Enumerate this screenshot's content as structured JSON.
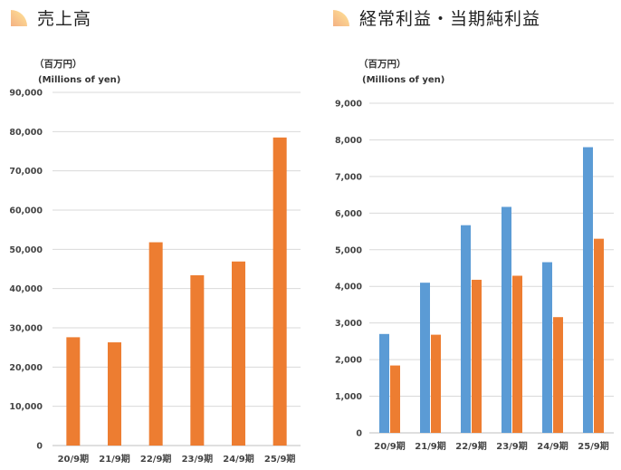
{
  "colors": {
    "orange": "#ED7D31",
    "blue": "#5B9BD5",
    "grid": "#D9D9D9",
    "axis": "#BFBFBF"
  },
  "icons": {
    "heading": "quarter-circle-gradient-icon"
  },
  "chart_data": [
    {
      "type": "bar",
      "title": "売上高",
      "unit_jp": "（百万円）",
      "unit_en": "(Millions of yen)",
      "categories": [
        "20/9期",
        "21/9期",
        "22/9期",
        "23/9期",
        "24/9期",
        "25/9期"
      ],
      "series": [
        {
          "values": [
            27600,
            26300,
            51800,
            43400,
            46900,
            78500
          ],
          "color": "#ED7D31"
        }
      ],
      "ylim": [
        0,
        90000
      ],
      "yticks": [
        0,
        10000,
        20000,
        30000,
        40000,
        50000,
        60000,
        70000,
        80000,
        90000
      ],
      "ytick_labels": [
        "0",
        "10,000",
        "20,000",
        "30,000",
        "40,000",
        "50,000",
        "60,000",
        "70,000",
        "80,000",
        "90,000"
      ],
      "grid": true
    },
    {
      "type": "bar",
      "title": "経常利益・当期純利益",
      "unit_jp": "（百万円）",
      "unit_en": "(Millions of yen)",
      "categories": [
        "20/9期",
        "21/9期",
        "22/9期",
        "23/9期",
        "24/9期",
        "25/9期"
      ],
      "series": [
        {
          "values": [
            2700,
            4100,
            5670,
            6170,
            4660,
            7800
          ],
          "color": "#5B9BD5"
        },
        {
          "values": [
            1840,
            2680,
            4180,
            4290,
            3160,
            5300
          ],
          "color": "#ED7D31"
        }
      ],
      "ylim": [
        0,
        9000
      ],
      "yticks": [
        0,
        1000,
        2000,
        3000,
        4000,
        5000,
        6000,
        7000,
        8000,
        9000
      ],
      "ytick_labels": [
        "0",
        "1,000",
        "2,000",
        "3,000",
        "4,000",
        "5,000",
        "6,000",
        "7,000",
        "8,000",
        "9,000"
      ],
      "grid": true
    }
  ]
}
